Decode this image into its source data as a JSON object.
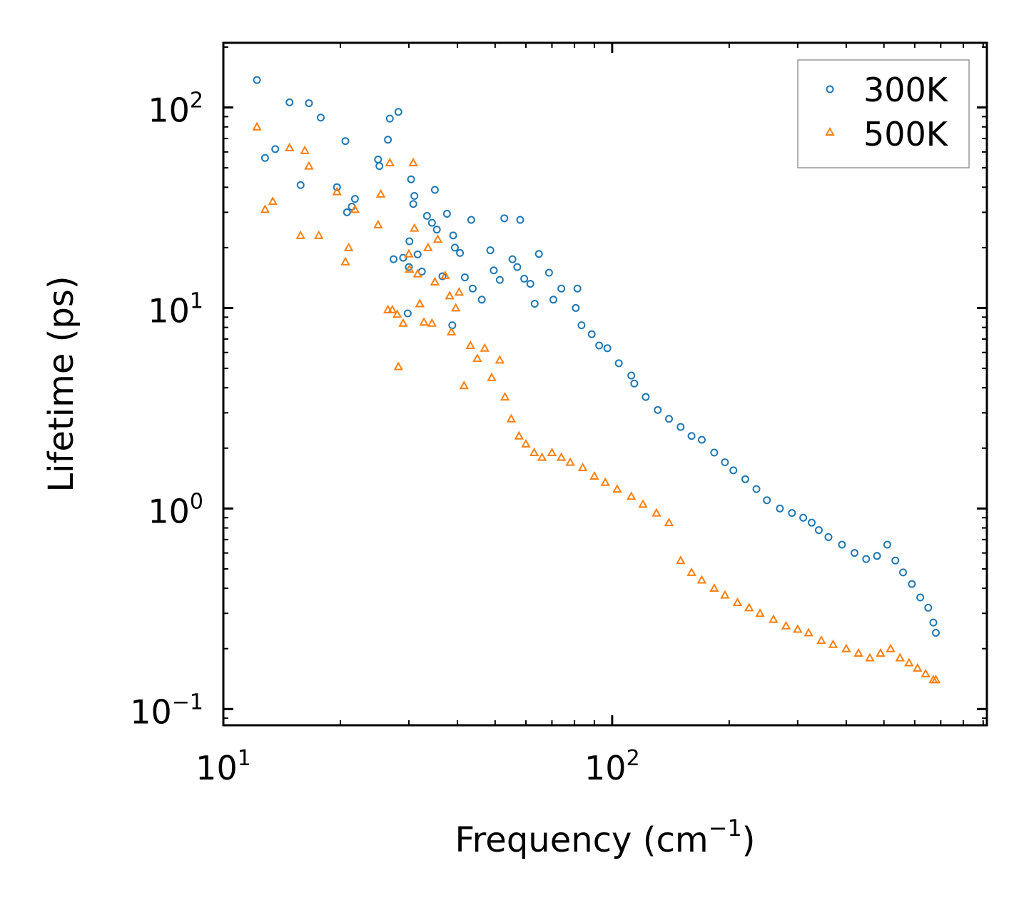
{
  "chart_data": {
    "type": "scatter",
    "title": "",
    "xlabel": "Frequency (cm",
    "xlabel_sup": "−1",
    "xlabel_close": ")",
    "ylabel": "Lifetime (ps)",
    "xscale": "log",
    "yscale": "log",
    "xlim": [
      10,
      920
    ],
    "ylim": [
      0.083,
      210
    ],
    "x_ticks": [
      {
        "value": 10,
        "base": "10",
        "exp": "1"
      },
      {
        "value": 100,
        "base": "10",
        "exp": "2"
      }
    ],
    "y_ticks": [
      {
        "value": 0.1,
        "base": "10",
        "exp": "−1"
      },
      {
        "value": 1,
        "base": "10",
        "exp": "0"
      },
      {
        "value": 10,
        "base": "10",
        "exp": "1"
      },
      {
        "value": 100,
        "base": "10",
        "exp": "2"
      }
    ],
    "legend_position": "top-right",
    "series": [
      {
        "name": "300K",
        "marker": "circle",
        "color": "#1f77b4",
        "x": [
          12.2,
          12.8,
          13.6,
          14.8,
          15.8,
          16.6,
          17.8,
          19.6,
          20.6,
          20.8,
          21.4,
          21.8,
          25.0,
          25.2,
          26.5,
          26.8,
          27.4,
          28.2,
          29.0,
          29.8,
          30.0,
          30.1,
          30.4,
          30.8,
          31.0,
          31.6,
          32.4,
          33.4,
          34.4,
          35.0,
          35.4,
          36.6,
          37.6,
          38.8,
          39.0,
          39.4,
          40.6,
          41.8,
          43.4,
          43.8,
          46.2,
          48.6,
          49.6,
          51.4,
          52.8,
          55.4,
          57.0,
          58.0,
          59.4,
          61.6,
          63.2,
          64.8,
          68.8,
          70.6,
          74.0,
          80.6,
          81.4,
          83.4,
          88.6,
          92.6,
          97.2,
          104.0,
          112.0,
          114.0,
          122.0,
          131.0,
          140.0,
          150.0,
          160.0,
          170.0,
          183.0,
          195.0,
          205.0,
          220.0,
          235.0,
          250.0,
          270.0,
          290.0,
          310.0,
          326.0,
          340.0,
          360.0,
          390.0,
          420.0,
          450.0,
          480.0,
          510.0,
          535.0,
          560.0,
          590.0,
          620.0,
          650.0,
          670.0,
          680.0
        ],
        "y": [
          137,
          56,
          62,
          106,
          41,
          105,
          89,
          40,
          68,
          30,
          32,
          35,
          55,
          51,
          69,
          88,
          17.5,
          95,
          17.8,
          9.4,
          16,
          21.5,
          43.8,
          33,
          36.2,
          18.5,
          15.2,
          28.8,
          26.6,
          38.8,
          24.6,
          14.4,
          29.5,
          8.2,
          23,
          20,
          18.8,
          14.2,
          27.5,
          12.5,
          11,
          19.4,
          15.4,
          13.8,
          28,
          17.5,
          16,
          27.5,
          14,
          13.2,
          10.5,
          18.6,
          15,
          11,
          12.5,
          10,
          12.5,
          8.2,
          7.4,
          6.5,
          6.3,
          5.3,
          4.6,
          4.2,
          3.6,
          3.1,
          2.8,
          2.55,
          2.3,
          2.2,
          1.9,
          1.7,
          1.55,
          1.4,
          1.25,
          1.1,
          1.0,
          0.95,
          0.9,
          0.85,
          0.78,
          0.72,
          0.66,
          0.6,
          0.56,
          0.58,
          0.66,
          0.55,
          0.48,
          0.42,
          0.36,
          0.32,
          0.27,
          0.24
        ]
      },
      {
        "name": "500K",
        "marker": "triangle",
        "color": "#ff7f0e",
        "x": [
          12.2,
          12.8,
          13.4,
          14.8,
          15.8,
          16.2,
          16.6,
          17.6,
          19.6,
          20.6,
          21.0,
          21.8,
          25.0,
          25.4,
          26.5,
          26.8,
          27.2,
          28.0,
          28.2,
          29.0,
          30.0,
          30.1,
          30.8,
          31.0,
          31.6,
          32.0,
          32.8,
          33.6,
          34.4,
          35.0,
          35.6,
          37.2,
          38.2,
          38.6,
          39.6,
          40.4,
          41.6,
          43.2,
          45.0,
          47.0,
          49.0,
          51.4,
          53.0,
          55.0,
          57.6,
          60.0,
          63.0,
          66.0,
          70.0,
          74.0,
          78.0,
          84.0,
          90.0,
          96.0,
          103.0,
          112.0,
          120.0,
          130.0,
          140.0,
          150.0,
          160.0,
          170.0,
          183.0,
          195.0,
          210.0,
          225.0,
          240.0,
          260.0,
          280.0,
          300.0,
          320.0,
          345.0,
          370.0,
          400.0,
          430.0,
          460.0,
          490.0,
          520.0,
          550.0,
          580.0,
          610.0,
          640.0,
          670.0,
          680.0
        ],
        "y": [
          80,
          31,
          34,
          63,
          23,
          61,
          51,
          23,
          38,
          17,
          20,
          31,
          26,
          37,
          9.8,
          53,
          9.8,
          9.3,
          5.1,
          8.4,
          18.6,
          15.6,
          53,
          25,
          14.8,
          10.5,
          8.5,
          20,
          8.4,
          13.5,
          22,
          14.5,
          11.5,
          7.6,
          10,
          12,
          4.1,
          6.5,
          5.6,
          6.3,
          4.5,
          5.5,
          3.6,
          2.8,
          2.3,
          2.1,
          1.9,
          1.8,
          1.9,
          1.8,
          1.7,
          1.6,
          1.45,
          1.35,
          1.25,
          1.15,
          1.05,
          0.95,
          0.85,
          0.55,
          0.48,
          0.44,
          0.4,
          0.37,
          0.34,
          0.32,
          0.3,
          0.28,
          0.26,
          0.25,
          0.24,
          0.22,
          0.21,
          0.2,
          0.19,
          0.18,
          0.19,
          0.2,
          0.18,
          0.17,
          0.16,
          0.15,
          0.14,
          0.14
        ]
      }
    ]
  }
}
